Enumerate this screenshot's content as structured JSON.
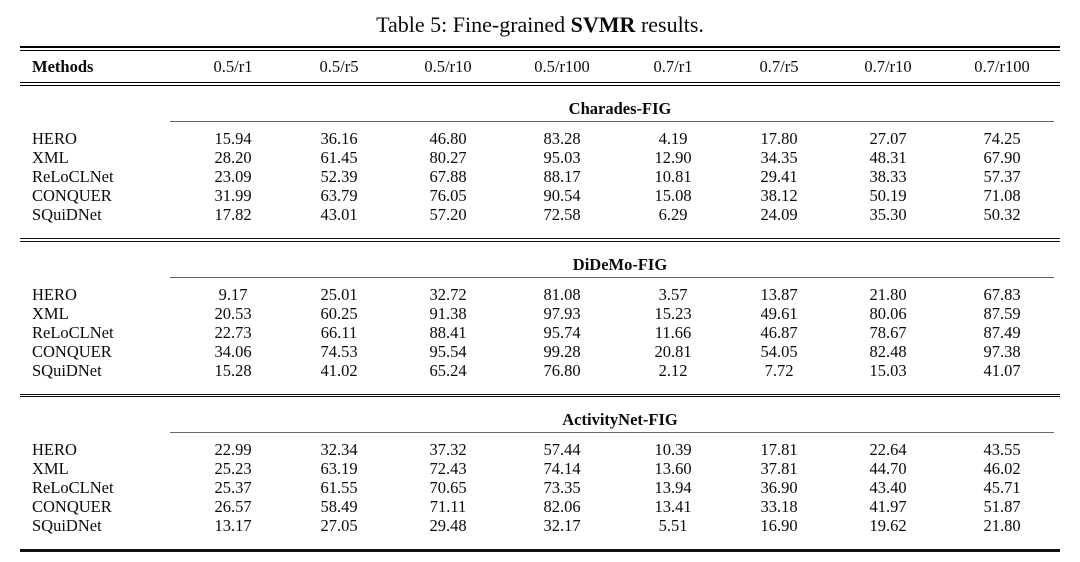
{
  "title": {
    "prefix": "Table 5: Fine-grained ",
    "bold_term": "SVMR",
    "suffix": " results."
  },
  "columns": [
    "Methods",
    "0.5/r1",
    "0.5/r5",
    "0.5/r10",
    "0.5/r100",
    "0.7/r1",
    "0.7/r5",
    "0.7/r10",
    "0.7/r100"
  ],
  "sections": [
    {
      "name": "Charades-FIG",
      "rows": [
        {
          "method": "HERO",
          "values": [
            "15.94",
            "36.16",
            "46.80",
            "83.28",
            "4.19",
            "17.80",
            "27.07",
            "74.25"
          ]
        },
        {
          "method": "XML",
          "values": [
            "28.20",
            "61.45",
            "80.27",
            "95.03",
            "12.90",
            "34.35",
            "48.31",
            "67.90"
          ]
        },
        {
          "method": "ReLoCLNet",
          "values": [
            "23.09",
            "52.39",
            "67.88",
            "88.17",
            "10.81",
            "29.41",
            "38.33",
            "57.37"
          ]
        },
        {
          "method": "CONQUER",
          "values": [
            "31.99",
            "63.79",
            "76.05",
            "90.54",
            "15.08",
            "38.12",
            "50.19",
            "71.08"
          ]
        },
        {
          "method": "SQuiDNet",
          "values": [
            "17.82",
            "43.01",
            "57.20",
            "72.58",
            "6.29",
            "24.09",
            "35.30",
            "50.32"
          ]
        }
      ]
    },
    {
      "name": "DiDeMo-FIG",
      "rows": [
        {
          "method": "HERO",
          "values": [
            "9.17",
            "25.01",
            "32.72",
            "81.08",
            "3.57",
            "13.87",
            "21.80",
            "67.83"
          ]
        },
        {
          "method": "XML",
          "values": [
            "20.53",
            "60.25",
            "91.38",
            "97.93",
            "15.23",
            "49.61",
            "80.06",
            "87.59"
          ]
        },
        {
          "method": "ReLoCLNet",
          "values": [
            "22.73",
            "66.11",
            "88.41",
            "95.74",
            "11.66",
            "46.87",
            "78.67",
            "87.49"
          ]
        },
        {
          "method": "CONQUER",
          "values": [
            "34.06",
            "74.53",
            "95.54",
            "99.28",
            "20.81",
            "54.05",
            "82.48",
            "97.38"
          ]
        },
        {
          "method": "SQuiDNet",
          "values": [
            "15.28",
            "41.02",
            "65.24",
            "76.80",
            "2.12",
            "7.72",
            "15.03",
            "41.07"
          ]
        }
      ]
    },
    {
      "name": "ActivityNet-FIG",
      "rows": [
        {
          "method": "HERO",
          "values": [
            "22.99",
            "32.34",
            "37.32",
            "57.44",
            "10.39",
            "17.81",
            "22.64",
            "43.55"
          ]
        },
        {
          "method": "XML",
          "values": [
            "25.23",
            "63.19",
            "72.43",
            "74.14",
            "13.60",
            "37.81",
            "44.70",
            "46.02"
          ]
        },
        {
          "method": "ReLoCLNet",
          "values": [
            "25.37",
            "61.55",
            "70.65",
            "73.35",
            "13.94",
            "36.90",
            "43.40",
            "45.71"
          ]
        },
        {
          "method": "CONQUER",
          "values": [
            "26.57",
            "58.49",
            "71.11",
            "82.06",
            "13.41",
            "33.18",
            "41.97",
            "51.87"
          ]
        },
        {
          "method": "SQuiDNet",
          "values": [
            "13.17",
            "27.05",
            "29.48",
            "32.17",
            "5.51",
            "16.90",
            "19.62",
            "21.80"
          ]
        }
      ]
    }
  ]
}
